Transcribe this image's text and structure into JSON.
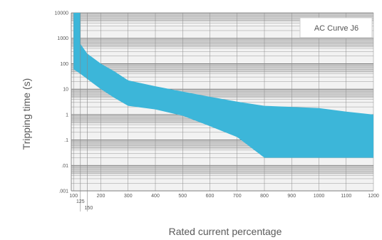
{
  "chart_data": {
    "type": "area",
    "title": "AC Curve J6",
    "xlabel": "Rated current percentage",
    "ylabel": "Tripping time (s)",
    "x_scale": "linear",
    "y_scale": "log",
    "xlim": [
      0,
      1200
    ],
    "ylim": [
      0.001,
      10000
    ],
    "x_ticks": [
      {
        "value": 100,
        "label": "100"
      },
      {
        "value": 125,
        "label": "125"
      },
      {
        "value": 150,
        "label": "150"
      },
      {
        "value": 200,
        "label": "200"
      },
      {
        "value": 300,
        "label": "300"
      },
      {
        "value": 400,
        "label": "400"
      },
      {
        "value": 500,
        "label": "500"
      },
      {
        "value": 600,
        "label": "600"
      },
      {
        "value": 700,
        "label": "700"
      },
      {
        "value": 800,
        "label": "800"
      },
      {
        "value": 900,
        "label": "900"
      },
      {
        "value": 1000,
        "label": "1000"
      },
      {
        "value": 1100,
        "label": "1100"
      },
      {
        "value": 1200,
        "label": "1200"
      }
    ],
    "y_ticks": [
      {
        "value": 10000,
        "label": "10000"
      },
      {
        "value": 1000,
        "label": "1000"
      },
      {
        "value": 100,
        "label": "100"
      },
      {
        "value": 10,
        "label": "10"
      },
      {
        "value": 1,
        "label": "1"
      },
      {
        "value": 0.1,
        "label": ".1"
      },
      {
        "value": 0.01,
        "label": ".01"
      },
      {
        "value": 0.001,
        "label": ".001"
      }
    ],
    "band": {
      "upper": [
        [
          100,
          10000
        ],
        [
          125,
          10000
        ],
        [
          125,
          600
        ],
        [
          150,
          250
        ],
        [
          200,
          100
        ],
        [
          250,
          50
        ],
        [
          300,
          22
        ],
        [
          400,
          13
        ],
        [
          500,
          8
        ],
        [
          600,
          5
        ],
        [
          700,
          3.2
        ],
        [
          800,
          2.2
        ],
        [
          1000,
          1.8
        ],
        [
          1100,
          1.3
        ],
        [
          1200,
          1.0
        ]
      ],
      "lower": [
        [
          100,
          60
        ],
        [
          125,
          40
        ],
        [
          150,
          25
        ],
        [
          200,
          10
        ],
        [
          250,
          4.5
        ],
        [
          300,
          2.2
        ],
        [
          400,
          1.6
        ],
        [
          500,
          0.9
        ],
        [
          600,
          0.35
        ],
        [
          700,
          0.13
        ],
        [
          800,
          0.02
        ],
        [
          900,
          0.02
        ],
        [
          1000,
          0.02
        ],
        [
          1100,
          0.02
        ],
        [
          1200,
          0.02
        ]
      ]
    },
    "grid": true,
    "legend_position": "top-right",
    "colors": {
      "band": "#3cb6d9",
      "grid_bg": "#d8d8d8",
      "grid_band_dark": "#bdbdbd",
      "grid_light": "#f2f2f2"
    }
  }
}
